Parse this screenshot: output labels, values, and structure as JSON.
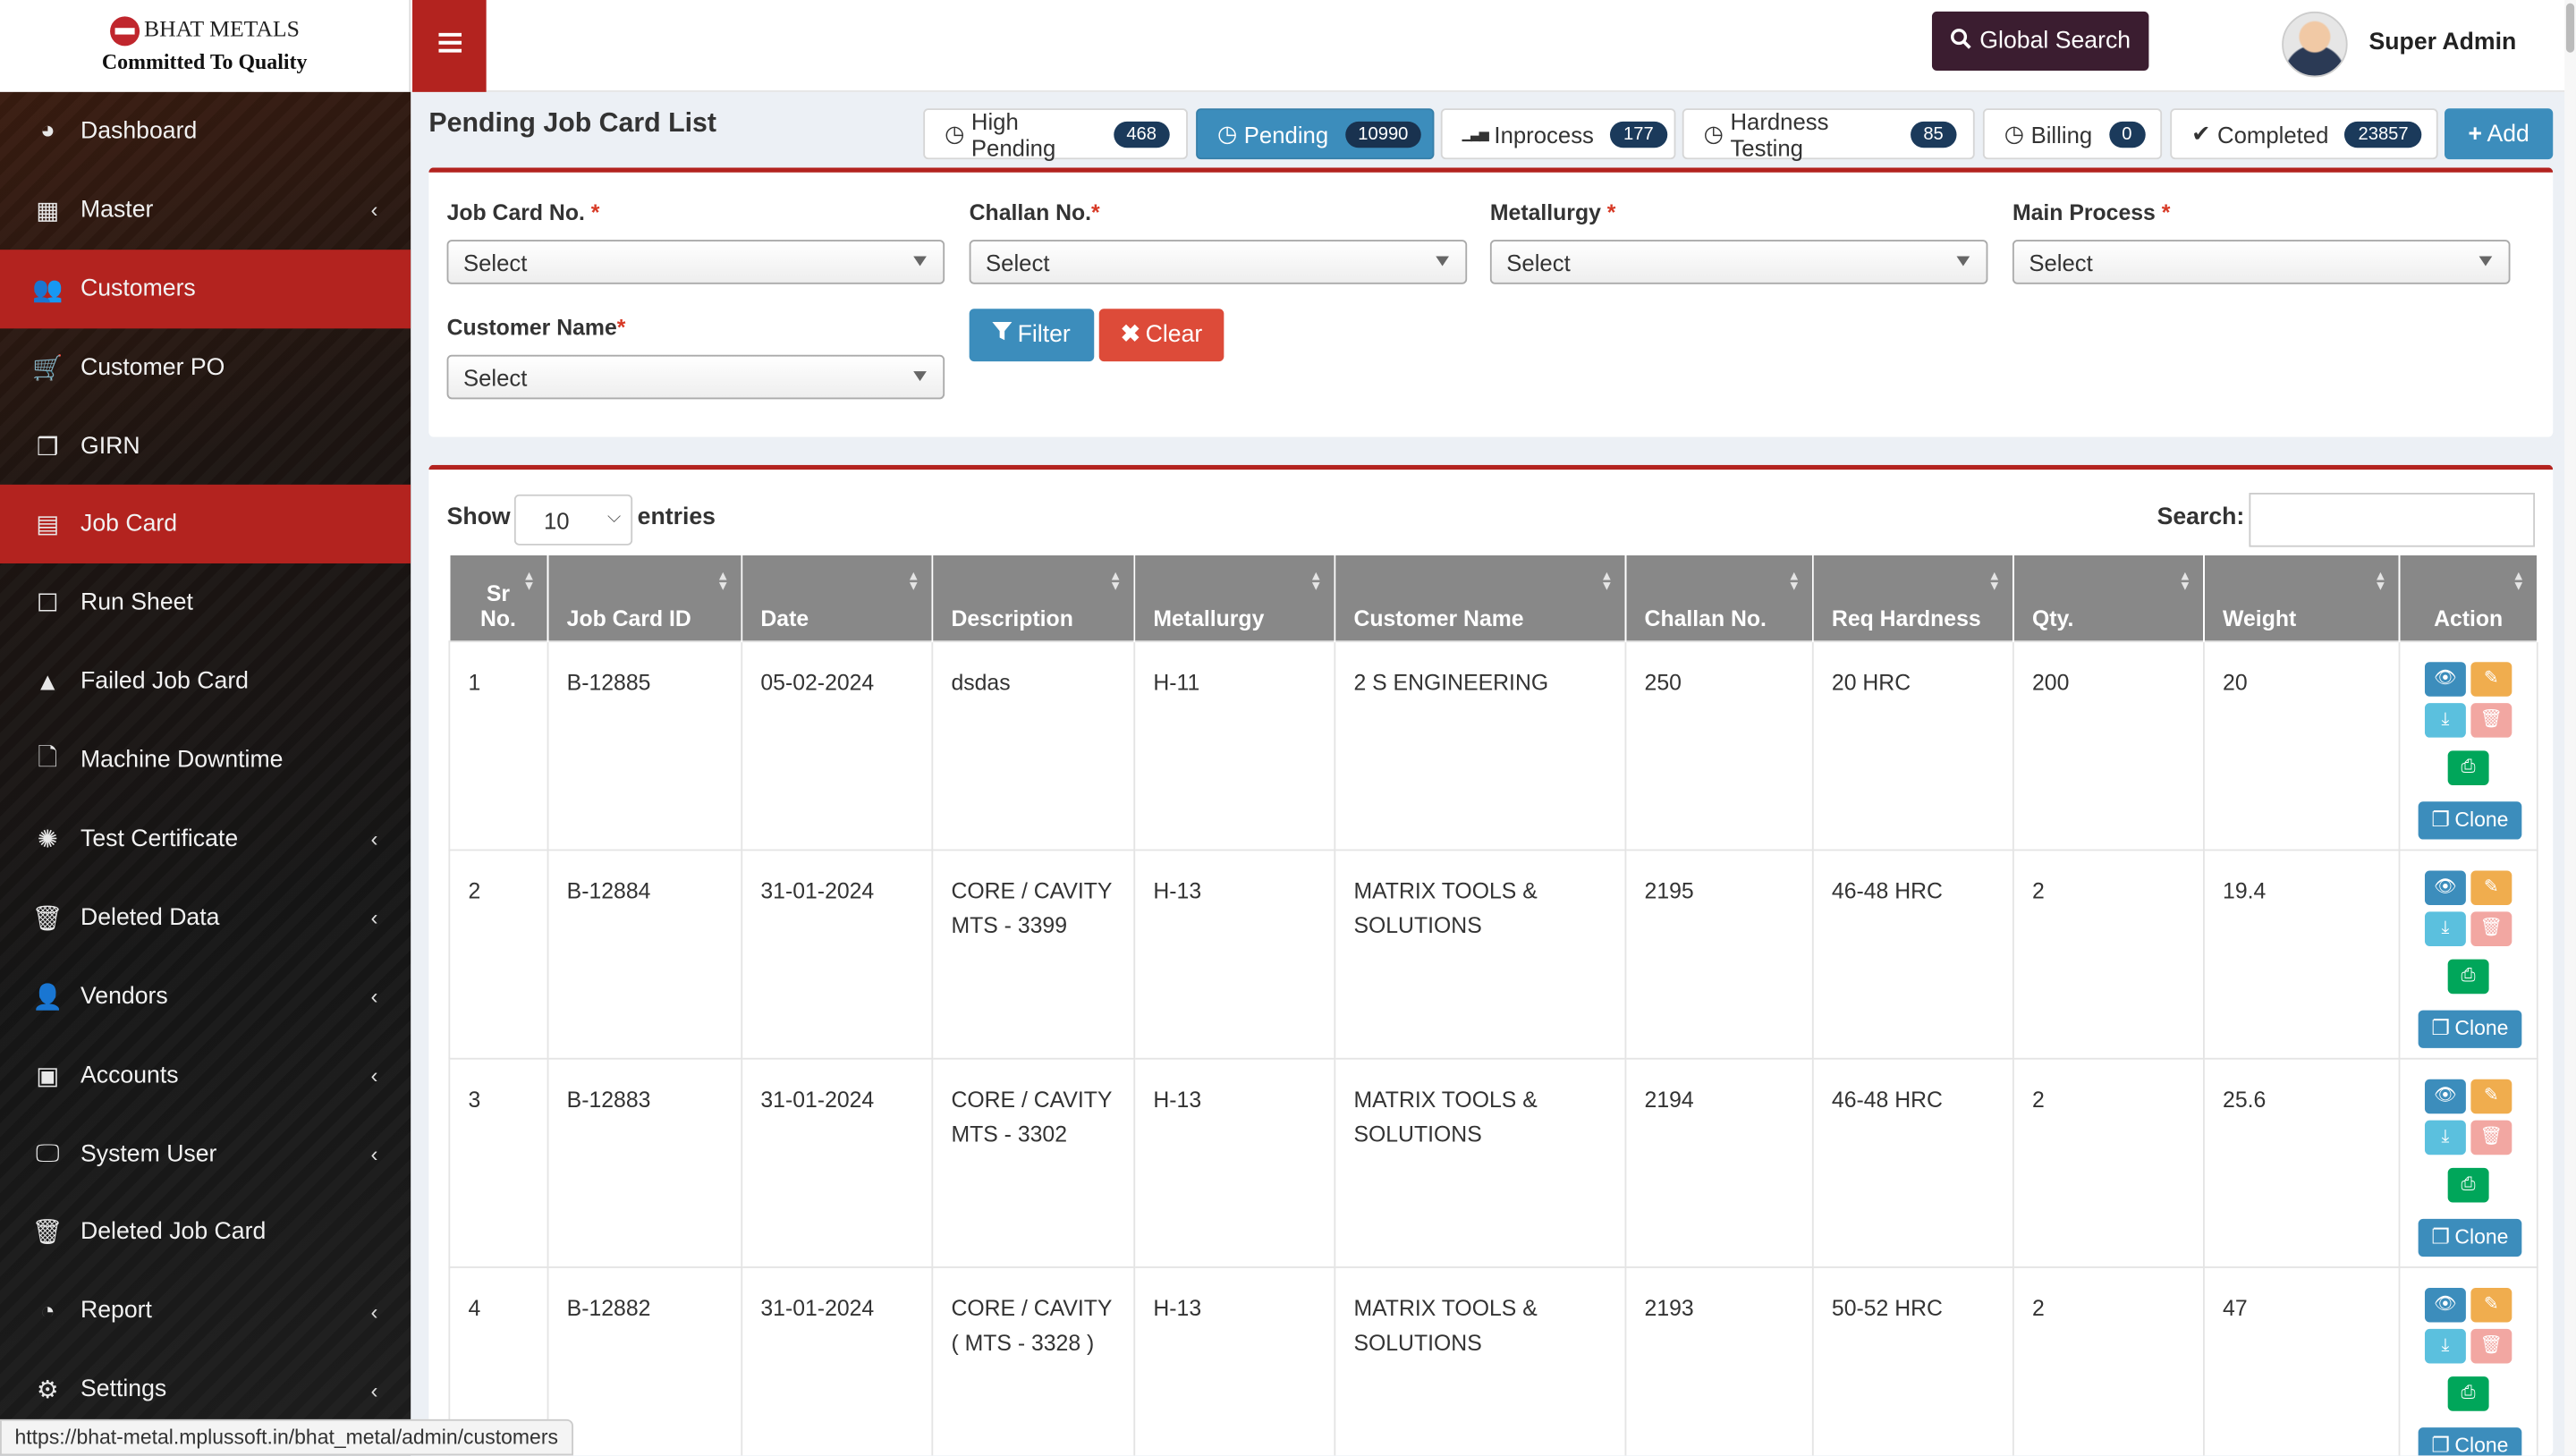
{
  "brand": {
    "name": "BHAT METALS",
    "tagline": "Committed To Quality"
  },
  "sidebar": {
    "items": [
      {
        "label": "Dashboard",
        "icon": "dashboard-icon",
        "active": false,
        "chevron": false
      },
      {
        "label": "Master",
        "icon": "table-icon",
        "active": false,
        "chevron": true
      },
      {
        "label": "Customers",
        "icon": "users-icon",
        "active": true,
        "chevron": false
      },
      {
        "label": "Customer PO",
        "icon": "cart-icon",
        "active": false,
        "chevron": false
      },
      {
        "label": "GIRN",
        "icon": "cubes-icon",
        "active": false,
        "chevron": false
      },
      {
        "label": "Job Card",
        "icon": "id-card-icon",
        "active": true,
        "chevron": false
      },
      {
        "label": "Run Sheet",
        "icon": "edit-square-icon",
        "active": false,
        "chevron": false
      },
      {
        "label": "Failed Job Card",
        "icon": "warning-icon",
        "active": false,
        "chevron": false
      },
      {
        "label": "Machine Downtime",
        "icon": "file-icon",
        "active": false,
        "chevron": false
      },
      {
        "label": "Test Certificate",
        "icon": "certificate-icon",
        "active": false,
        "chevron": true
      },
      {
        "label": "Deleted Data",
        "icon": "trash-icon",
        "active": false,
        "chevron": true
      },
      {
        "label": "Vendors",
        "icon": "user-icon",
        "active": false,
        "chevron": true
      },
      {
        "label": "Accounts",
        "icon": "money-icon",
        "active": false,
        "chevron": true
      },
      {
        "label": "System User",
        "icon": "desktop-icon",
        "active": false,
        "chevron": true
      },
      {
        "label": "Deleted Job Card",
        "icon": "trash-icon",
        "active": false,
        "chevron": false
      },
      {
        "label": "Report",
        "icon": "pie-chart-icon",
        "active": false,
        "chevron": true
      },
      {
        "label": "Settings",
        "icon": "gear-icon",
        "active": false,
        "chevron": true
      }
    ]
  },
  "header": {
    "global_search": "Global Search",
    "user_name": "Super Admin"
  },
  "page": {
    "title": "Pending Job Card List",
    "add_label": "Add",
    "status_tabs": [
      {
        "label": "High Pending",
        "count": "468",
        "icon": "clock-icon",
        "active": false
      },
      {
        "label": "Pending",
        "count": "10990",
        "icon": "clock-icon",
        "active": true
      },
      {
        "label": "Inprocess",
        "count": "177",
        "icon": "signal-icon",
        "active": false
      },
      {
        "label": "Hardness Testing",
        "count": "85",
        "icon": "clock-icon",
        "active": false
      },
      {
        "label": "Billing",
        "count": "0",
        "icon": "clock-icon",
        "active": false
      },
      {
        "label": "Completed",
        "count": "23857",
        "icon": "check-icon",
        "active": false
      }
    ]
  },
  "filters": {
    "job_card_no": {
      "label": "Job Card No.",
      "value": "Select"
    },
    "challan_no": {
      "label": "Challan No.",
      "value": "Select"
    },
    "metallurgy": {
      "label": "Metallurgy",
      "value": "Select"
    },
    "main_process": {
      "label": "Main Process",
      "value": "Select"
    },
    "customer_name": {
      "label": "Customer Name",
      "value": "Select"
    },
    "filter_button": "Filter",
    "clear_button": "Clear"
  },
  "table": {
    "show_label": "Show",
    "entries_value": "10",
    "entries_label": "entries",
    "search_label": "Search:",
    "search_value": "",
    "columns": [
      "Sr No.",
      "Job Card ID",
      "Date",
      "Description",
      "Metallurgy",
      "Customer Name",
      "Challan No.",
      "Req Hardness",
      "Qty.",
      "Weight",
      "Action"
    ],
    "clone_label": "Clone",
    "rows": [
      {
        "sr": "1",
        "job_card_id": "B-12885",
        "date": "05-02-2024",
        "description": "dsdas",
        "metallurgy": "H-11",
        "customer": "2 S ENGINEERING",
        "challan": "250",
        "hardness": "20 HRC",
        "qty": "200",
        "weight": "20"
      },
      {
        "sr": "2",
        "job_card_id": "B-12884",
        "date": "31-01-2024",
        "description": "CORE / CAVITY MTS - 3399",
        "metallurgy": "H-13",
        "customer": "MATRIX TOOLS & SOLUTIONS",
        "challan": "2195",
        "hardness": "46-48 HRC",
        "qty": "2",
        "weight": "19.4"
      },
      {
        "sr": "3",
        "job_card_id": "B-12883",
        "date": "31-01-2024",
        "description": "CORE / CAVITY MTS - 3302",
        "metallurgy": "H-13",
        "customer": "MATRIX TOOLS & SOLUTIONS",
        "challan": "2194",
        "hardness": "46-48 HRC",
        "qty": "2",
        "weight": "25.6"
      },
      {
        "sr": "4",
        "job_card_id": "B-12882",
        "date": "31-01-2024",
        "description": "CORE / CAVITY ( MTS - 3328 )",
        "metallurgy": "H-13",
        "customer": "MATRIX TOOLS & SOLUTIONS",
        "challan": "2193",
        "hardness": "50-52 HRC",
        "qty": "2",
        "weight": "47"
      }
    ]
  },
  "status_bar": {
    "url": "https://bhat-metal.mplussoft.in/bhat_metal/admin/customers"
  }
}
